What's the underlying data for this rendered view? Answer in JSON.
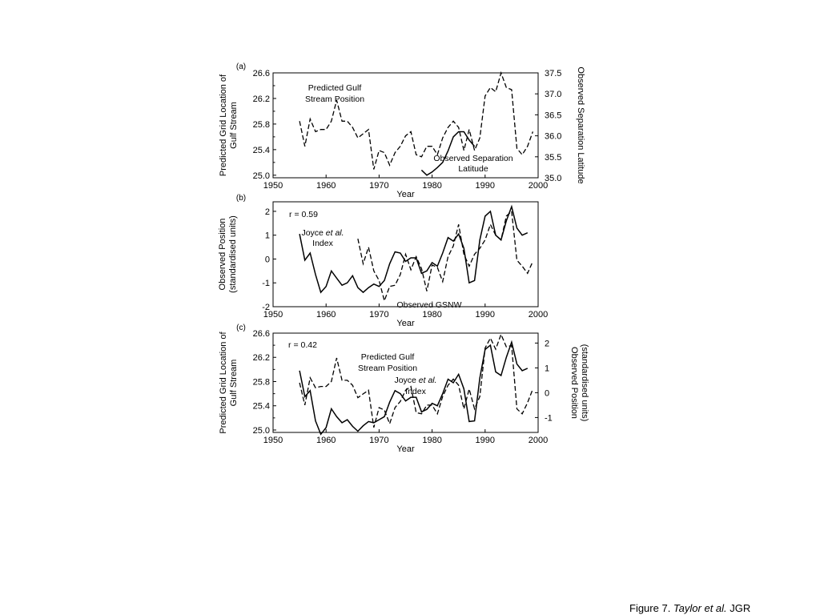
{
  "caption": {
    "prefix": "Figure 7. ",
    "authors": "Taylor et al.",
    "journal": " JGR"
  },
  "chart_data": [
    {
      "panel_label": "(a)",
      "type": "line",
      "xlabel": "Year",
      "ylabel_lines": [
        "Predicted Grid Location of",
        "Gulf Stream"
      ],
      "y2label": "Observed Separation Latitude",
      "xlim": [
        1950,
        2000
      ],
      "ylim": [
        24.96,
        26.6
      ],
      "y2lim": [
        35.0,
        37.5
      ],
      "x_ticks": [
        1950,
        1960,
        1970,
        1980,
        1990,
        2000
      ],
      "y_ticks": [
        "25.0",
        "25.4",
        "25.8",
        "26.2",
        "26.6"
      ],
      "y2_ticks": [
        "35.0",
        "35.5",
        "36.0",
        "36.5",
        "37.0",
        "37.5"
      ],
      "annotations": [
        {
          "lines": [
            "Predicted Gulf",
            "Stream Position"
          ]
        },
        {
          "lines": [
            "Observed Separation",
            "Latitude"
          ]
        }
      ],
      "series": [
        {
          "style": "solid",
          "axis": "left",
          "x": [
            1978,
            1979,
            1980,
            1981,
            1982,
            1983,
            1984,
            1985,
            1986,
            1987,
            1988
          ],
          "values": [
            25.08,
            25.0,
            25.05,
            25.12,
            25.2,
            25.38,
            25.6,
            25.68,
            25.68,
            25.55,
            25.45
          ]
        },
        {
          "style": "dashed",
          "axis": "right",
          "x": [
            1955,
            1956,
            1957,
            1958,
            1959,
            1960,
            1961,
            1962,
            1963,
            1964,
            1965,
            1966,
            1967,
            1968,
            1969,
            1970,
            1971,
            1972,
            1973,
            1974,
            1975,
            1976,
            1977,
            1978,
            1979,
            1980,
            1981,
            1982,
            1983,
            1984,
            1985,
            1986,
            1987,
            1988,
            1989,
            1990,
            1991,
            1992,
            1993,
            1994,
            1995,
            1996,
            1997,
            1998,
            1999
          ],
          "values": [
            36.35,
            35.75,
            36.4,
            36.1,
            36.15,
            36.15,
            36.35,
            36.85,
            36.35,
            36.35,
            36.2,
            35.95,
            36.05,
            36.15,
            35.2,
            35.65,
            35.6,
            35.3,
            35.6,
            35.75,
            36.0,
            36.1,
            35.55,
            35.5,
            35.75,
            35.75,
            35.55,
            35.95,
            36.2,
            36.35,
            36.2,
            35.65,
            36.15,
            35.65,
            35.95,
            36.95,
            37.15,
            37.05,
            37.5,
            37.15,
            37.1,
            35.7,
            35.55,
            35.75,
            36.1
          ]
        }
      ]
    },
    {
      "panel_label": "(b)",
      "type": "line",
      "xlabel": "Year",
      "ylabel_lines": [
        "Observed Position",
        "(standardised units)"
      ],
      "xlim": [
        1950,
        2000
      ],
      "ylim": [
        -2,
        2.4
      ],
      "x_ticks": [
        1950,
        1960,
        1970,
        1980,
        1990,
        2000
      ],
      "y_ticks": [
        "-2",
        "-1",
        "0",
        "1",
        "2"
      ],
      "stat_label": "r = 0.59",
      "annotations": [
        {
          "lines": [
            "Joyce ",
            "et al.",
            "Index"
          ]
        },
        {
          "lines": [
            "Observed GSNW"
          ]
        }
      ],
      "series": [
        {
          "style": "solid",
          "x": [
            1955,
            1956,
            1957,
            1958,
            1959,
            1960,
            1961,
            1962,
            1963,
            1964,
            1965,
            1966,
            1967,
            1968,
            1969,
            1970,
            1971,
            1972,
            1973,
            1974,
            1975,
            1976,
            1977,
            1978,
            1979,
            1980,
            1981,
            1982,
            1983,
            1984,
            1985,
            1986,
            1987,
            1988,
            1989,
            1990,
            1991,
            1992,
            1993,
            1994,
            1995,
            1996,
            1997,
            1998
          ],
          "values": [
            1.05,
            -0.05,
            0.25,
            -0.65,
            -1.4,
            -1.15,
            -0.5,
            -0.8,
            -1.1,
            -1.0,
            -0.7,
            -1.2,
            -1.4,
            -1.2,
            -1.05,
            -1.15,
            -0.9,
            -0.2,
            0.3,
            0.25,
            -0.1,
            0.05,
            0.05,
            -0.6,
            -0.5,
            -0.15,
            -0.3,
            0.25,
            0.9,
            0.75,
            1.05,
            0.45,
            -1.0,
            -0.9,
            0.8,
            1.8,
            2.0,
            1.0,
            0.8,
            1.6,
            2.2,
            1.3,
            1.0,
            1.1
          ]
        },
        {
          "style": "dashed",
          "x": [
            1966,
            1967,
            1968,
            1969,
            1970,
            1971,
            1972,
            1973,
            1974,
            1975,
            1976,
            1977,
            1978,
            1979,
            1980,
            1981,
            1982,
            1983,
            1984,
            1985,
            1986,
            1987,
            1988,
            1989,
            1990,
            1991,
            1992,
            1993,
            1994,
            1995,
            1996,
            1997,
            1998,
            1999
          ],
          "values": [
            0.85,
            -0.2,
            0.5,
            -0.5,
            -0.9,
            -1.75,
            -1.15,
            -1.1,
            -0.65,
            0.2,
            -0.45,
            0.1,
            -0.4,
            -1.35,
            -0.25,
            -0.35,
            -0.95,
            0.1,
            0.55,
            1.45,
            0.2,
            -0.3,
            0.2,
            0.45,
            0.8,
            1.45,
            1.0,
            0.8,
            1.8,
            2.0,
            -0.05,
            -0.3,
            -0.6,
            -0.1
          ]
        }
      ]
    },
    {
      "panel_label": "(c)",
      "type": "line",
      "xlabel": "Year",
      "ylabel_lines": [
        "Predicted Grid Location of",
        "Gulf Stream"
      ],
      "y2label_lines": [
        "Observed Position",
        "(standardised units)"
      ],
      "xlim": [
        1950,
        2000
      ],
      "ylim": [
        24.96,
        26.6
      ],
      "y2lim": [
        -1.6,
        2.4
      ],
      "x_ticks": [
        1950,
        1960,
        1970,
        1980,
        1990,
        2000
      ],
      "y_ticks": [
        "25.0",
        "25.4",
        "25.8",
        "26.2",
        "26.6"
      ],
      "y2_ticks": [
        "-1",
        "0",
        "1",
        "2"
      ],
      "stat_label": "r = 0.42",
      "annotations": [
        {
          "lines": [
            "Predicted Gulf",
            "Stream Position"
          ]
        },
        {
          "lines": [
            "Joyce ",
            "et al.",
            "Index"
          ]
        }
      ],
      "series": [
        {
          "style": "solid",
          "axis": "left",
          "x": [
            1955,
            1956,
            1957,
            1958,
            1959,
            1960,
            1961,
            1962,
            1963,
            1964,
            1965,
            1966,
            1967,
            1968,
            1969,
            1970,
            1971,
            1972,
            1973,
            1974,
            1975,
            1976,
            1977,
            1978,
            1979,
            1980,
            1981,
            1982,
            1983,
            1984,
            1985,
            1986,
            1987,
            1988,
            1989,
            1990,
            1991,
            1992,
            1993,
            1994,
            1995,
            1996,
            1997,
            1998
          ],
          "values": [
            25.98,
            25.55,
            25.65,
            25.15,
            24.93,
            25.04,
            25.35,
            25.22,
            25.12,
            25.17,
            25.06,
            24.98,
            25.07,
            25.14,
            25.12,
            25.17,
            25.22,
            25.46,
            25.65,
            25.6,
            25.48,
            25.54,
            25.54,
            25.3,
            25.34,
            25.44,
            25.4,
            25.6,
            25.84,
            25.78,
            25.92,
            25.68,
            25.14,
            25.15,
            25.86,
            26.33,
            26.4,
            25.96,
            25.9,
            26.2,
            26.45,
            26.09,
            25.98,
            26.02
          ]
        },
        {
          "style": "dashed",
          "axis": "right",
          "x": [
            1955,
            1956,
            1957,
            1958,
            1959,
            1960,
            1961,
            1962,
            1963,
            1964,
            1965,
            1966,
            1967,
            1968,
            1969,
            1970,
            1971,
            1972,
            1973,
            1974,
            1975,
            1976,
            1977,
            1978,
            1979,
            1980,
            1981,
            1982,
            1983,
            1984,
            1985,
            1986,
            1987,
            1988,
            1989,
            1990,
            1991,
            1992,
            1993,
            1994,
            1995,
            1996,
            1997,
            1998,
            1999
          ],
          "values": [
            0.4,
            -0.5,
            0.6,
            0.2,
            0.25,
            0.25,
            0.45,
            1.4,
            0.5,
            0.5,
            0.3,
            -0.2,
            -0.05,
            0.1,
            -1.4,
            -0.6,
            -0.7,
            -1.25,
            -0.6,
            -0.35,
            0.1,
            0.25,
            -0.8,
            -0.85,
            -0.5,
            -0.5,
            -0.85,
            -0.15,
            0.3,
            0.55,
            0.3,
            -0.65,
            0.15,
            -0.65,
            -0.15,
            1.8,
            2.2,
            1.75,
            2.35,
            1.85,
            1.9,
            -0.65,
            -0.85,
            -0.4,
            0.15
          ]
        }
      ]
    }
  ]
}
